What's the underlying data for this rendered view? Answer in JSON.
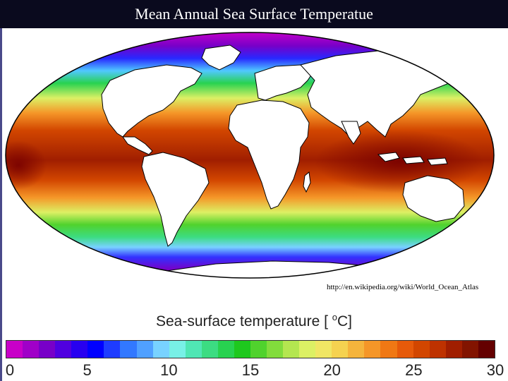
{
  "header": {
    "title": "Mean Annual Sea Surface Temperatue"
  },
  "map": {
    "source_url": "http://en.wikipedia.org/wiki/World_Ocean_Atlas",
    "projection": "mollweide",
    "colors": {
      "land": "#ffffff",
      "coastline": "#000000"
    }
  },
  "legend": {
    "title_prefix": "Sea-surface temperature [ ",
    "title_unit_sup": "o",
    "title_unit": "C",
    "title_suffix": "]",
    "ticks": [
      "0",
      "5",
      "10",
      "15",
      "20",
      "25",
      "30"
    ],
    "range": [
      0,
      30
    ],
    "colors": [
      "#c800c8",
      "#a000c8",
      "#7800c8",
      "#5000e0",
      "#2800f0",
      "#0000ff",
      "#1e3cff",
      "#3278ff",
      "#50a0ff",
      "#78d2ff",
      "#78f0e6",
      "#50e6b4",
      "#3cdc82",
      "#28d250",
      "#1ec81e",
      "#50d22d",
      "#82dc3c",
      "#b4e650",
      "#dcf064",
      "#f0e664",
      "#f5d250",
      "#f5b43c",
      "#f59628",
      "#f07814",
      "#e65a0a",
      "#d24600",
      "#be3200",
      "#a01e00",
      "#821400",
      "#640000"
    ]
  }
}
